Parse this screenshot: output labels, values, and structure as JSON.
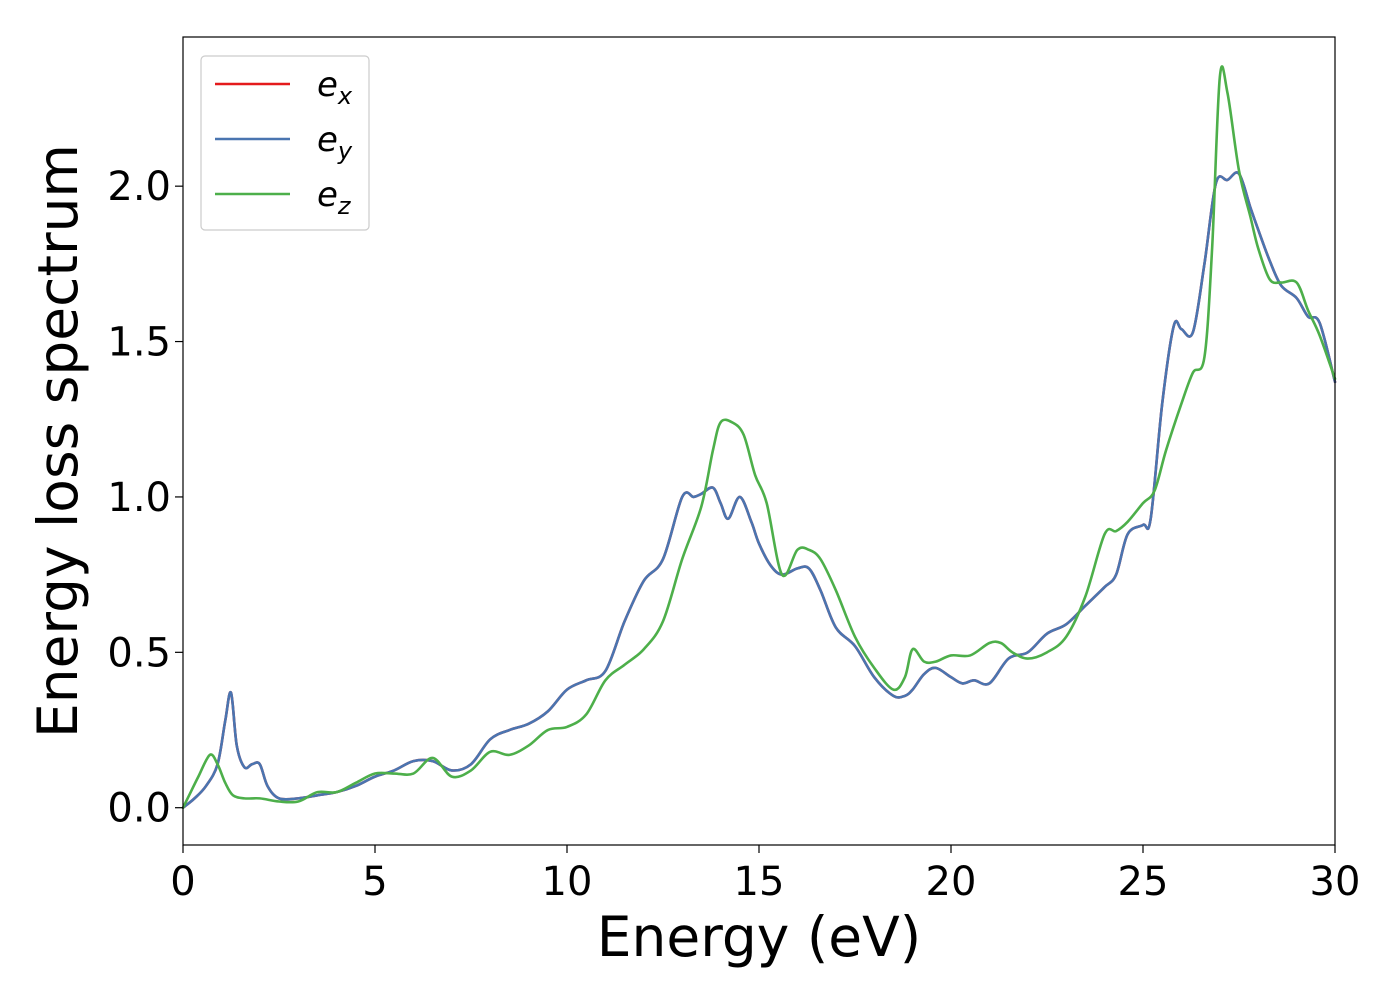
{
  "chart_data": {
    "type": "line",
    "title": "",
    "xlabel": "Energy (eV)",
    "ylabel": "Energy loss spectrum",
    "xlim": [
      0,
      30
    ],
    "ylim": [
      -0.12,
      2.48
    ],
    "xticks": [
      0,
      5,
      10,
      15,
      20,
      25,
      30
    ],
    "xtick_labels": [
      "0",
      "5",
      "10",
      "15",
      "20",
      "25",
      "30"
    ],
    "yticks": [
      0.0,
      0.5,
      1.0,
      1.5,
      2.0
    ],
    "ytick_labels": [
      "0.0",
      "0.5",
      "1.0",
      "1.5",
      "2.0"
    ],
    "grid": false,
    "legend_position": "top-left",
    "series": [
      {
        "name": "e_x",
        "label_base": "e",
        "label_sub": "x",
        "color": "#e41a1c",
        "x": [
          0,
          0.3,
          0.6,
          0.9,
          1.1,
          1.25,
          1.4,
          1.6,
          1.8,
          2.0,
          2.2,
          2.5,
          3.0,
          3.5,
          4.0,
          4.5,
          5.0,
          5.5,
          6.0,
          6.5,
          7.0,
          7.5,
          8.0,
          8.5,
          9.0,
          9.5,
          10.0,
          10.5,
          11.0,
          11.5,
          12.0,
          12.5,
          13.0,
          13.3,
          13.5,
          13.8,
          14.0,
          14.2,
          14.5,
          14.8,
          15.0,
          15.3,
          15.6,
          16.0,
          16.3,
          16.6,
          17.0,
          17.5,
          18.0,
          18.5,
          18.8,
          19.0,
          19.3,
          19.6,
          20.0,
          20.3,
          20.6,
          21.0,
          21.5,
          22.0,
          22.5,
          23.0,
          23.5,
          24.0,
          24.3,
          24.6,
          25.0,
          25.2,
          25.5,
          25.8,
          26.0,
          26.3,
          26.6,
          26.9,
          27.2,
          27.5,
          27.8,
          28.0,
          28.3,
          28.6,
          29.0,
          29.3,
          29.6,
          30.0
        ],
        "y": [
          0.0,
          0.03,
          0.07,
          0.14,
          0.28,
          0.37,
          0.2,
          0.13,
          0.14,
          0.14,
          0.07,
          0.03,
          0.03,
          0.04,
          0.05,
          0.07,
          0.1,
          0.12,
          0.15,
          0.15,
          0.12,
          0.14,
          0.22,
          0.25,
          0.27,
          0.31,
          0.38,
          0.41,
          0.44,
          0.6,
          0.73,
          0.8,
          1.0,
          1.0,
          1.01,
          1.03,
          0.98,
          0.93,
          1.0,
          0.92,
          0.85,
          0.78,
          0.75,
          0.77,
          0.77,
          0.7,
          0.58,
          0.52,
          0.42,
          0.36,
          0.36,
          0.38,
          0.43,
          0.45,
          0.42,
          0.4,
          0.41,
          0.4,
          0.48,
          0.5,
          0.56,
          0.59,
          0.65,
          0.71,
          0.75,
          0.88,
          0.91,
          0.93,
          1.3,
          1.55,
          1.54,
          1.53,
          1.75,
          2.01,
          2.02,
          2.04,
          1.93,
          1.86,
          1.76,
          1.68,
          1.64,
          1.58,
          1.56,
          1.37
        ]
      },
      {
        "name": "e_y",
        "label_base": "e",
        "label_sub": "y",
        "color": "#4a75b0",
        "x": [
          0,
          0.3,
          0.6,
          0.9,
          1.1,
          1.25,
          1.4,
          1.6,
          1.8,
          2.0,
          2.2,
          2.5,
          3.0,
          3.5,
          4.0,
          4.5,
          5.0,
          5.5,
          6.0,
          6.5,
          7.0,
          7.5,
          8.0,
          8.5,
          9.0,
          9.5,
          10.0,
          10.5,
          11.0,
          11.5,
          12.0,
          12.5,
          13.0,
          13.3,
          13.5,
          13.8,
          14.0,
          14.2,
          14.5,
          14.8,
          15.0,
          15.3,
          15.6,
          16.0,
          16.3,
          16.6,
          17.0,
          17.5,
          18.0,
          18.5,
          18.8,
          19.0,
          19.3,
          19.6,
          20.0,
          20.3,
          20.6,
          21.0,
          21.5,
          22.0,
          22.5,
          23.0,
          23.5,
          24.0,
          24.3,
          24.6,
          25.0,
          25.2,
          25.5,
          25.8,
          26.0,
          26.3,
          26.6,
          26.9,
          27.2,
          27.5,
          27.8,
          28.0,
          28.3,
          28.6,
          29.0,
          29.3,
          29.6,
          30.0
        ],
        "y": [
          0.0,
          0.03,
          0.07,
          0.14,
          0.28,
          0.37,
          0.2,
          0.13,
          0.14,
          0.14,
          0.07,
          0.03,
          0.03,
          0.04,
          0.05,
          0.07,
          0.1,
          0.12,
          0.15,
          0.15,
          0.12,
          0.14,
          0.22,
          0.25,
          0.27,
          0.31,
          0.38,
          0.41,
          0.44,
          0.6,
          0.73,
          0.8,
          1.0,
          1.0,
          1.01,
          1.03,
          0.98,
          0.93,
          1.0,
          0.92,
          0.85,
          0.78,
          0.75,
          0.77,
          0.77,
          0.7,
          0.58,
          0.52,
          0.42,
          0.36,
          0.36,
          0.38,
          0.43,
          0.45,
          0.42,
          0.4,
          0.41,
          0.4,
          0.48,
          0.5,
          0.56,
          0.59,
          0.65,
          0.71,
          0.75,
          0.88,
          0.91,
          0.93,
          1.3,
          1.55,
          1.54,
          1.53,
          1.75,
          2.01,
          2.02,
          2.04,
          1.93,
          1.86,
          1.76,
          1.68,
          1.64,
          1.58,
          1.56,
          1.37
        ]
      },
      {
        "name": "e_z",
        "label_base": "e",
        "label_sub": "z",
        "color": "#4daf4a",
        "x": [
          0,
          0.2,
          0.4,
          0.7,
          0.9,
          1.1,
          1.3,
          1.6,
          2.0,
          2.5,
          3.0,
          3.5,
          4.0,
          4.5,
          5.0,
          5.5,
          6.0,
          6.5,
          7.0,
          7.5,
          8.0,
          8.5,
          9.0,
          9.5,
          10.0,
          10.5,
          11.0,
          11.5,
          12.0,
          12.5,
          13.0,
          13.5,
          13.8,
          14.0,
          14.3,
          14.6,
          14.9,
          15.2,
          15.6,
          16.0,
          16.3,
          16.6,
          17.0,
          17.5,
          18.0,
          18.5,
          18.8,
          19.0,
          19.3,
          19.6,
          20.0,
          20.5,
          21.0,
          21.3,
          21.6,
          22.0,
          22.5,
          23.0,
          23.5,
          24.0,
          24.3,
          24.6,
          25.0,
          25.3,
          25.6,
          26.0,
          26.3,
          26.6,
          26.8,
          27.0,
          27.2,
          27.5,
          27.8,
          28.0,
          28.3,
          28.6,
          29.0,
          29.3,
          29.6,
          30.0
        ],
        "y": [
          0.0,
          0.05,
          0.1,
          0.17,
          0.14,
          0.08,
          0.04,
          0.03,
          0.03,
          0.02,
          0.02,
          0.05,
          0.05,
          0.08,
          0.11,
          0.11,
          0.11,
          0.16,
          0.1,
          0.12,
          0.18,
          0.17,
          0.2,
          0.25,
          0.26,
          0.3,
          0.41,
          0.46,
          0.51,
          0.6,
          0.8,
          0.97,
          1.15,
          1.24,
          1.24,
          1.2,
          1.07,
          0.98,
          0.75,
          0.83,
          0.83,
          0.8,
          0.7,
          0.55,
          0.45,
          0.38,
          0.42,
          0.51,
          0.47,
          0.47,
          0.49,
          0.49,
          0.53,
          0.53,
          0.5,
          0.48,
          0.5,
          0.55,
          0.68,
          0.88,
          0.89,
          0.92,
          0.98,
          1.02,
          1.15,
          1.3,
          1.4,
          1.45,
          1.8,
          2.35,
          2.3,
          2.05,
          1.9,
          1.8,
          1.7,
          1.69,
          1.69,
          1.6,
          1.52,
          1.38
        ]
      }
    ]
  }
}
